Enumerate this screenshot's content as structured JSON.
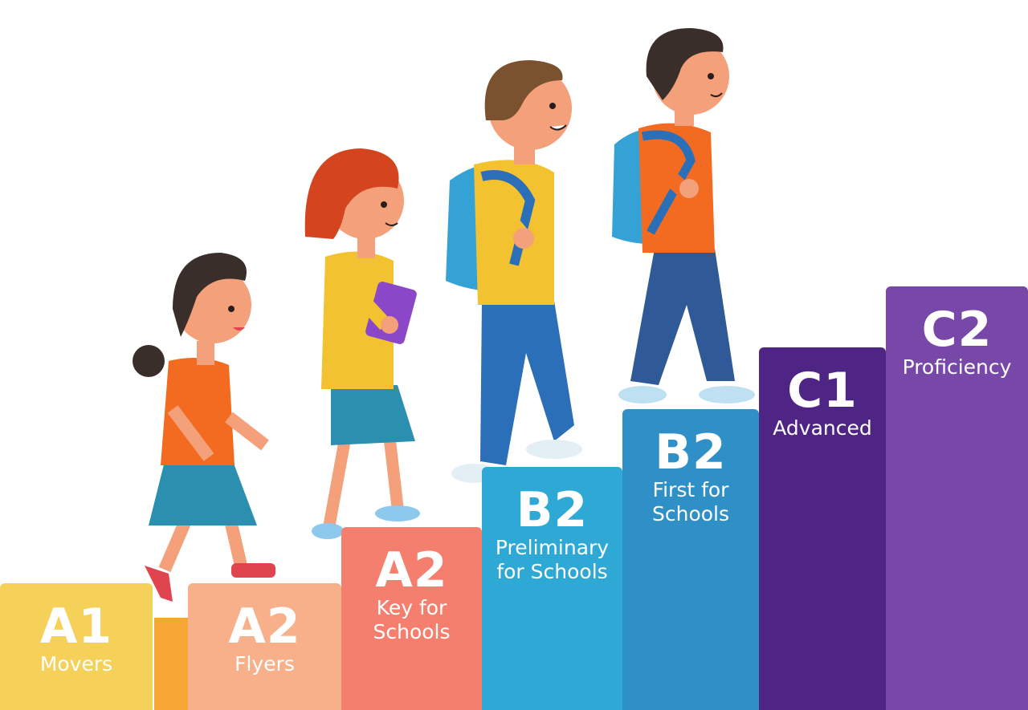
{
  "steps": [
    {
      "level": "A1",
      "name": "Movers"
    },
    {
      "level": "A2",
      "name": "Flyers"
    },
    {
      "level": "A2",
      "name": "Key for Schools"
    },
    {
      "level": "B2",
      "name": "Preliminary for Schools"
    },
    {
      "level": "B2",
      "name": "First for Schools"
    },
    {
      "level": "C1",
      "name": "Advanced"
    },
    {
      "level": "C2",
      "name": "Proficiency"
    }
  ]
}
